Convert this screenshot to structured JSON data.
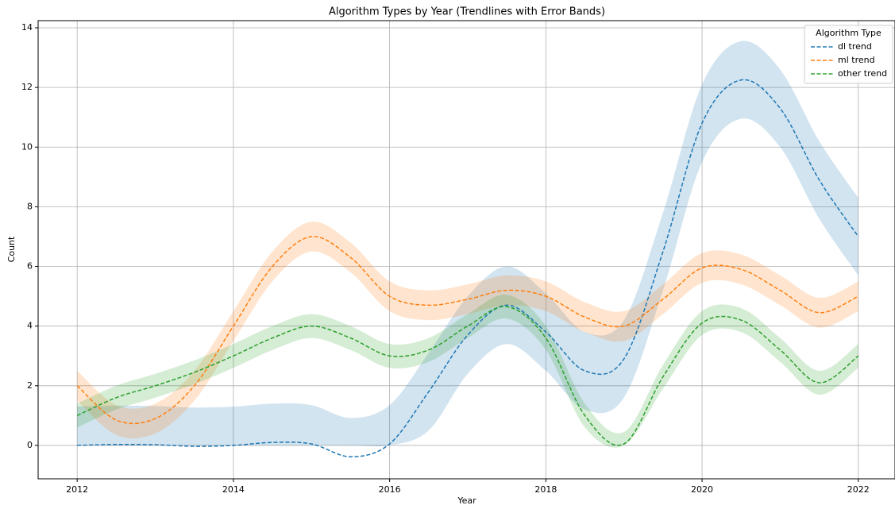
{
  "chart_data": {
    "type": "line",
    "title": "Algorithm Types by Year (Trendlines with Error Bands)",
    "xlabel": "Year",
    "ylabel": "Count",
    "legend_title": "Algorithm Type",
    "legend": "upper right",
    "grid": true,
    "x": [
      2012,
      2012.5,
      2013,
      2013.5,
      2014,
      2014.5,
      2015,
      2015.5,
      2016,
      2016.5,
      2017,
      2017.5,
      2018,
      2018.5,
      2019,
      2019.5,
      2020,
      2020.5,
      2021,
      2021.5,
      2022
    ],
    "xlim": [
      2011.5,
      2022.47
    ],
    "xticks": [
      2012,
      2014,
      2016,
      2018,
      2020,
      2022
    ],
    "ylim": [
      -1.12,
      14.24
    ],
    "yticks": [
      0,
      2,
      4,
      6,
      8,
      10,
      12,
      14
    ],
    "series": [
      {
        "name": "dl trend",
        "color": "#1f77b4",
        "values": [
          0,
          0.03,
          0.02,
          -0.03,
          0,
          0.1,
          0.05,
          -0.38,
          0.05,
          1.8,
          3.7,
          4.7,
          3.8,
          2.5,
          2.9,
          6.5,
          10.8,
          12.25,
          11.3,
          8.9,
          7
        ],
        "lower": [
          0,
          0,
          0,
          0,
          0,
          0,
          0,
          0,
          0,
          0.5,
          2.4,
          3.4,
          2.5,
          1.2,
          1.6,
          5.2,
          9.5,
          10.95,
          10,
          7.6,
          5.7
        ],
        "upper": [
          1.3,
          1.33,
          1.32,
          1.27,
          1.3,
          1.4,
          1.35,
          0.92,
          1.35,
          3.1,
          5,
          6,
          5.1,
          3.8,
          4.2,
          7.8,
          12.1,
          13.55,
          12.6,
          10.2,
          8.3
        ]
      },
      {
        "name": "ml trend",
        "color": "#ff7f0e",
        "values": [
          2,
          0.85,
          0.9,
          2,
          4,
          6,
          7,
          6.3,
          5,
          4.7,
          4.9,
          5.2,
          5,
          4.3,
          4,
          4.9,
          5.95,
          5.9,
          5.2,
          4.45,
          5
        ],
        "lower": [
          1.5,
          0.35,
          0.4,
          1.5,
          3.5,
          5.5,
          6.5,
          5.8,
          4.5,
          4.2,
          4.4,
          4.7,
          4.5,
          3.8,
          3.5,
          4.4,
          5.45,
          5.4,
          4.7,
          3.95,
          4.5
        ],
        "upper": [
          2.5,
          1.35,
          1.4,
          2.5,
          4.5,
          6.5,
          7.5,
          6.8,
          5.5,
          5.2,
          5.4,
          5.7,
          5.5,
          4.8,
          4.5,
          5.4,
          6.45,
          6.4,
          5.7,
          4.95,
          5.5
        ]
      },
      {
        "name": "other trend",
        "color": "#2ca02c",
        "values": [
          1,
          1.6,
          2.0,
          2.45,
          3.0,
          3.6,
          4.0,
          3.6,
          3.0,
          3.2,
          4.0,
          4.65,
          3.6,
          1.0,
          0.05,
          2.3,
          4.1,
          4.2,
          3.2,
          2.1,
          3
        ],
        "lower": [
          0.6,
          1.2,
          1.6,
          2.05,
          2.6,
          3.2,
          3.6,
          3.2,
          2.6,
          2.8,
          3.6,
          4.25,
          3.2,
          0.6,
          0,
          1.9,
          3.7,
          3.8,
          2.8,
          1.7,
          2.6
        ],
        "upper": [
          1.4,
          2.0,
          2.4,
          2.85,
          3.4,
          4.0,
          4.4,
          4.0,
          3.4,
          3.6,
          4.4,
          5.05,
          4.0,
          1.4,
          0.45,
          2.7,
          4.5,
          4.6,
          3.6,
          2.5,
          3.4
        ]
      }
    ]
  }
}
